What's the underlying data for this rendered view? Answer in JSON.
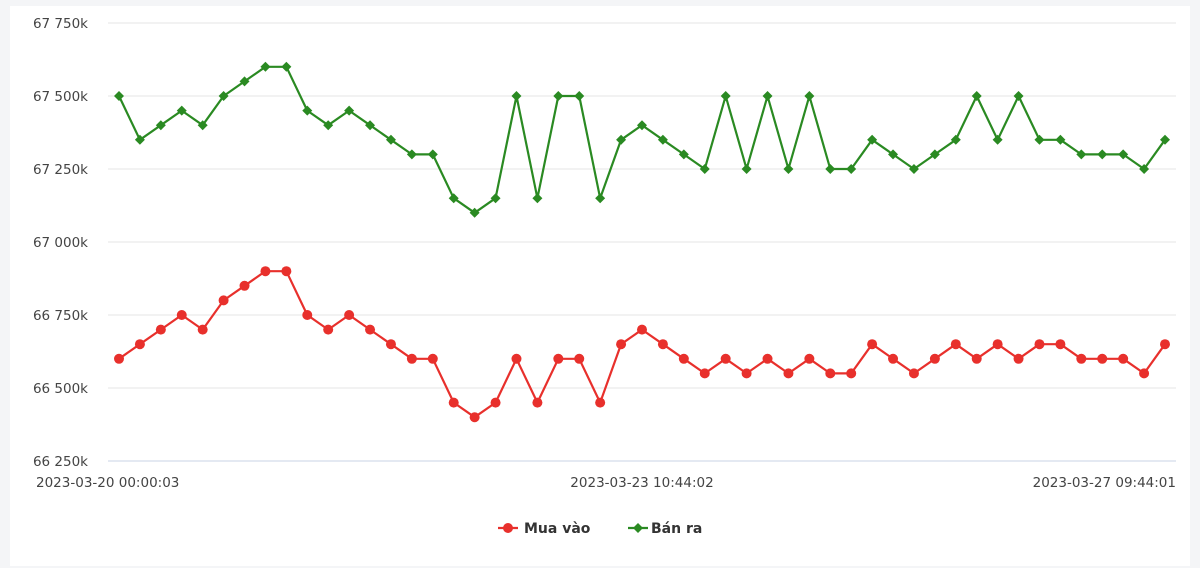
{
  "chart_data": {
    "type": "line",
    "title": "",
    "xlabel": "",
    "ylabel": "",
    "ylim": [
      66250,
      67750
    ],
    "y_ticks": [
      {
        "value": 67750,
        "label": "67 750k"
      },
      {
        "value": 67500,
        "label": "67 500k"
      },
      {
        "value": 67250,
        "label": "67 250k"
      },
      {
        "value": 67000,
        "label": "67 000k"
      },
      {
        "value": 66750,
        "label": "66 750k"
      },
      {
        "value": 66500,
        "label": "66 500k"
      },
      {
        "value": 66250,
        "label": "66 250k"
      }
    ],
    "x_ticks": [
      {
        "index": 0,
        "label": "2023-03-20 00:00:03"
      },
      {
        "index": 25,
        "label": "2023-03-23 10:44:02"
      },
      {
        "index": 50,
        "label": "2023-03-27 09:44:01"
      }
    ],
    "grid": true,
    "legend_position": "bottom-center",
    "series": [
      {
        "name": "Mua vào",
        "color": "#e8302c",
        "marker": "circle",
        "values": [
          66600,
          66650,
          66700,
          66750,
          66700,
          66800,
          66850,
          66900,
          66900,
          66750,
          66700,
          66750,
          66700,
          66650,
          66600,
          66600,
          66450,
          66400,
          66450,
          66600,
          66450,
          66600,
          66600,
          66450,
          66650,
          66700,
          66650,
          66600,
          66550,
          66600,
          66550,
          66600,
          66550,
          66600,
          66550,
          66550,
          66650,
          66600,
          66550,
          66600,
          66650,
          66600,
          66650,
          66600,
          66650,
          66650,
          66600,
          66600,
          66600,
          66550,
          66650
        ]
      },
      {
        "name": "Bán ra",
        "color": "#2a8a22",
        "marker": "diamond",
        "values": [
          67500,
          67350,
          67400,
          67450,
          67400,
          67500,
          67550,
          67600,
          67600,
          67450,
          67400,
          67450,
          67400,
          67350,
          67300,
          67300,
          67150,
          67100,
          67150,
          67500,
          67150,
          67500,
          67500,
          67150,
          67350,
          67400,
          67350,
          67300,
          67250,
          67500,
          67250,
          67500,
          67250,
          67500,
          67250,
          67250,
          67350,
          67300,
          67250,
          67300,
          67350,
          67500,
          67350,
          67500,
          67350,
          67350,
          67300,
          67300,
          67300,
          67250,
          67350
        ]
      }
    ]
  }
}
